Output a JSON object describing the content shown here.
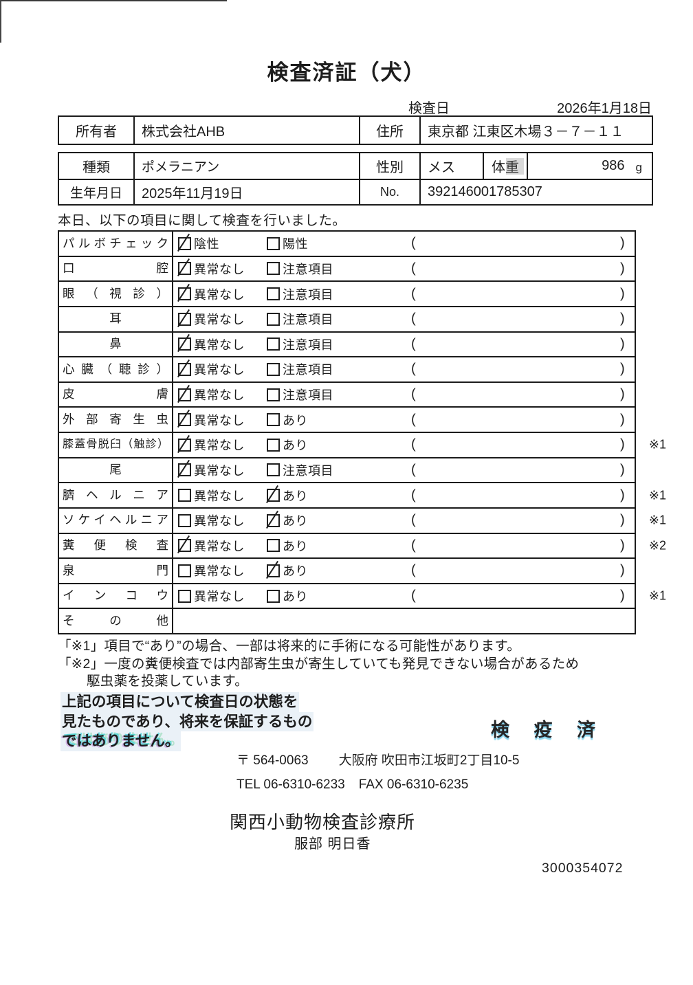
{
  "page": {
    "title": "検査済証（犬）",
    "inspection_date_label": "検査日",
    "inspection_date_value": "2026年1月18日",
    "intro_line": "本日、以下の項目に関して検査を行いました。"
  },
  "owner_table": {
    "owner_label": "所有者",
    "owner_value": "株式会社AHB",
    "address_label": "住所",
    "address_value": "東京都 江東区木場３－７－１１"
  },
  "pet_table": {
    "breed_label": "種類",
    "breed_value": "ポメラニアン",
    "sex_label": "性別",
    "sex_value": "メス",
    "weight_label": "体重",
    "weight_value": "986",
    "weight_unit": "g",
    "birthdate_label": "生年月日",
    "birthdate_value": "2025年11月19日",
    "no_label": "No.",
    "no_value": "392146001785307"
  },
  "inspection_table": {
    "paren_open": "(",
    "paren_close": ")",
    "rows": [
      {
        "name": "パルボチェック",
        "opt1": "陰性",
        "opt1_checked": true,
        "opt2": "陽性",
        "opt2_checked": false,
        "note": ""
      },
      {
        "name": "口腔",
        "opt1": "異常なし",
        "opt1_checked": true,
        "opt2": "注意項目",
        "opt2_checked": false,
        "note": ""
      },
      {
        "name": "眼（視診）",
        "opt1": "異常なし",
        "opt1_checked": true,
        "opt2": "注意項目",
        "opt2_checked": false,
        "note": ""
      },
      {
        "name": "耳",
        "opt1": "異常なし",
        "opt1_checked": true,
        "opt2": "注意項目",
        "opt2_checked": false,
        "note": ""
      },
      {
        "name": "鼻",
        "opt1": "異常なし",
        "opt1_checked": true,
        "opt2": "注意項目",
        "opt2_checked": false,
        "note": ""
      },
      {
        "name": "心臓（聴診）",
        "opt1": "異常なし",
        "opt1_checked": true,
        "opt2": "注意項目",
        "opt2_checked": false,
        "note": ""
      },
      {
        "name": "皮膚",
        "opt1": "異常なし",
        "opt1_checked": true,
        "opt2": "注意項目",
        "opt2_checked": false,
        "note": ""
      },
      {
        "name": "外部寄生虫",
        "opt1": "異常なし",
        "opt1_checked": true,
        "opt2": "あり",
        "opt2_checked": false,
        "note": ""
      },
      {
        "name": "膝蓋骨脱臼（触診）",
        "opt1": "異常なし",
        "opt1_checked": true,
        "opt2": "あり",
        "opt2_checked": false,
        "note": "※1"
      },
      {
        "name": "尾",
        "opt1": "異常なし",
        "opt1_checked": true,
        "opt2": "注意項目",
        "opt2_checked": false,
        "note": ""
      },
      {
        "name": "臍ヘルニア",
        "opt1": "異常なし",
        "opt1_checked": false,
        "opt2": "あり",
        "opt2_checked": true,
        "note": "※1"
      },
      {
        "name": "ソケイヘルニア",
        "opt1": "異常なし",
        "opt1_checked": false,
        "opt2": "あり",
        "opt2_checked": true,
        "note": "※1"
      },
      {
        "name": "糞便検査",
        "opt1": "異常なし",
        "opt1_checked": true,
        "opt2": "あり",
        "opt2_checked": false,
        "note": "※2"
      },
      {
        "name": "泉門",
        "opt1": "異常なし",
        "opt1_checked": false,
        "opt2": "あり",
        "opt2_checked": true,
        "note": ""
      },
      {
        "name": "インコウ",
        "opt1": "異常なし",
        "opt1_checked": false,
        "opt2": "あり",
        "opt2_checked": false,
        "note": "※1"
      },
      {
        "name": "その他",
        "opt1": "",
        "opt1_checked": false,
        "opt2": "",
        "opt2_checked": false,
        "note": ""
      }
    ]
  },
  "notes": {
    "note1": "「※1」項目で“あり”の場合、一部は将来的に手術になる可能性があります。",
    "note2_line1": "「※2」一度の糞便検査では内部寄生虫が寄生していても発見できない場合があるため",
    "note2_line2": "駆虫薬を投薬しています。"
  },
  "disclaimer": {
    "line1": "上記の項目について検査日の状態を",
    "line2": "見たものであり、将来を保証するもの",
    "line3": "ではありません。"
  },
  "stamp_text": "検 疫 済",
  "clinic": {
    "postal_code": "〒 564-0063",
    "address": "大阪府 吹田市江坂町2丁目10-5",
    "tel": "TEL 06-6310-6233",
    "fax": "FAX 06-6310-6235",
    "name": "関西小動物検査診療所",
    "veterinarian": "服部 明日香"
  },
  "document_number": "3000354072"
}
